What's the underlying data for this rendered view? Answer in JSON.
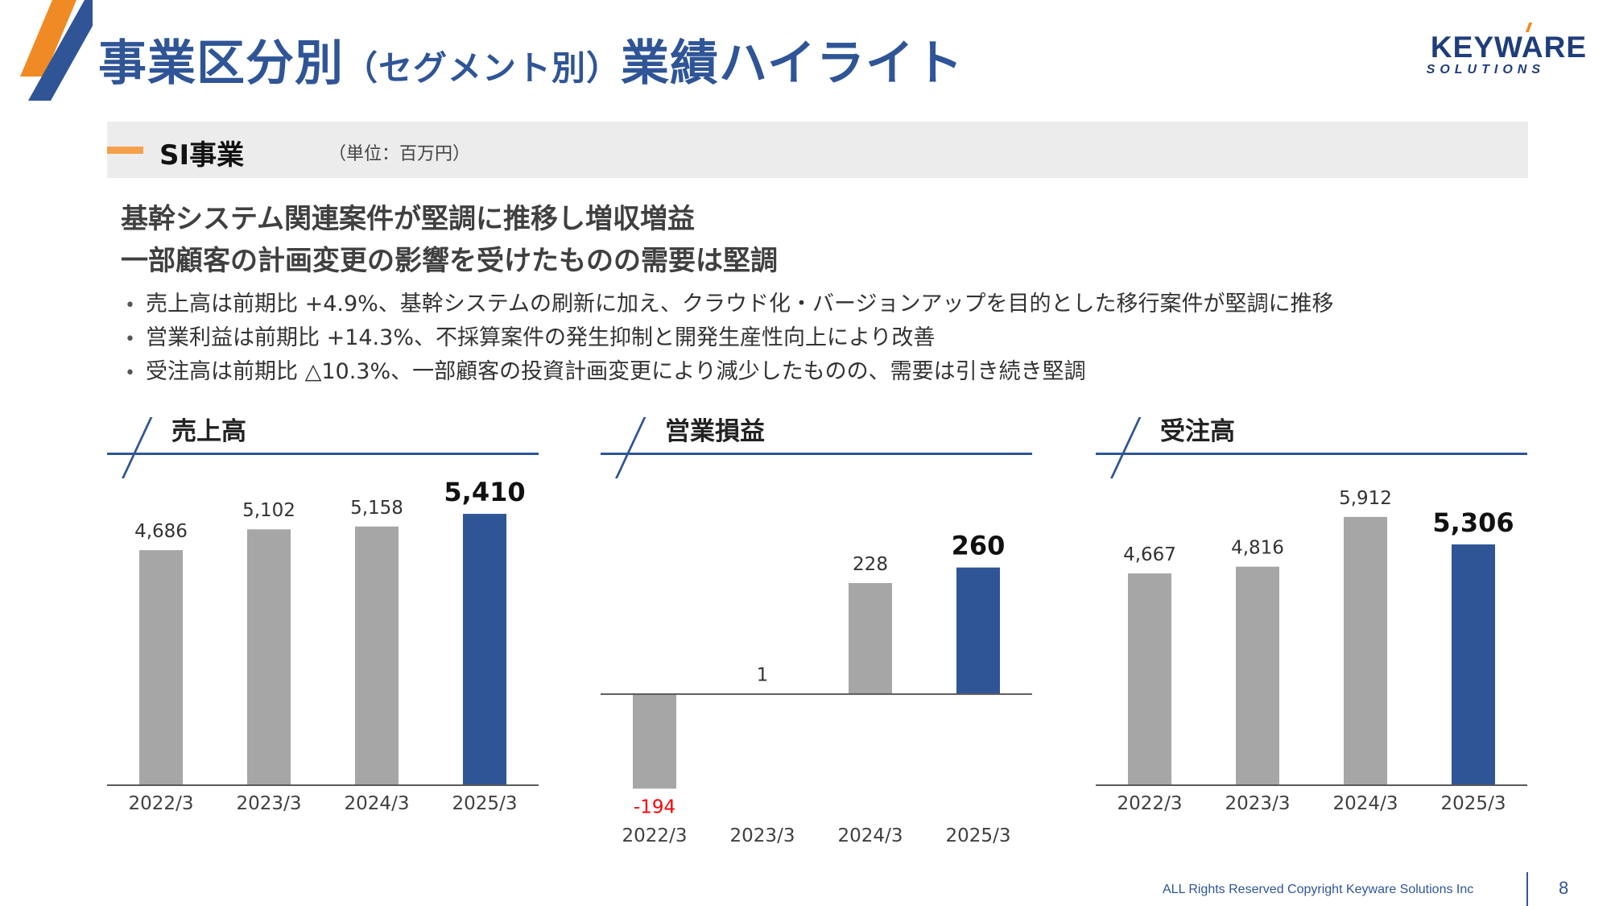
{
  "header": {
    "title_main": "事業区分別",
    "title_paren": "（セグメント別）",
    "title_tail": "業績ハイライト",
    "brand_main": "KEYWARE",
    "brand_sub": "SOLUTIONS"
  },
  "section": {
    "name": "SI事業",
    "unit": "（単位：百万円）"
  },
  "headlines": [
    "基幹システム関連案件が堅調に推移し増収増益",
    "一部顧客の計画変更の影響を受けたものの需要は堅調"
  ],
  "bullets": [
    "売上高は前期比 +4.9%、基幹システムの刷新に加え、クラウド化・バージョンアップを目的とした移行案件が堅調に推移",
    "営業利益は前期比 +14.3%、不採算案件の発生抑制と開発生産性向上により改善",
    "受注高は前期比 △10.3%、一部顧客の投資計画変更により減少したものの、需要は引き続き堅調"
  ],
  "colors": {
    "accent": "#2f5597",
    "bar_gray": "#a6a6a6",
    "bar_highlight": "#2f5597",
    "negative": "#ff0000",
    "orange": "#f5a04a"
  },
  "chart_data": [
    {
      "type": "bar",
      "title": "売上高",
      "categories": [
        "2022/3",
        "2023/3",
        "2024/3",
        "2025/3"
      ],
      "values": [
        4686,
        5102,
        5158,
        5410
      ],
      "labels": [
        "4,686",
        "5,102",
        "5,158",
        "5,410"
      ],
      "highlight_index": 3,
      "ylim": [
        0,
        5700
      ]
    },
    {
      "type": "bar",
      "title": "営業損益",
      "categories": [
        "2022/3",
        "2023/3",
        "2024/3",
        "2025/3"
      ],
      "values": [
        -194,
        1,
        228,
        260
      ],
      "labels": [
        "-194",
        "1",
        "228",
        "260"
      ],
      "highlight_index": 3,
      "ylim": [
        -220,
        400
      ]
    },
    {
      "type": "bar",
      "title": "受注高",
      "categories": [
        "2022/3",
        "2023/3",
        "2024/3",
        "2025/3"
      ],
      "values": [
        4667,
        4816,
        5912,
        5306
      ],
      "labels": [
        "4,667",
        "4,816",
        "5,912",
        "5,306"
      ],
      "highlight_index": 3,
      "ylim": [
        0,
        6300
      ]
    }
  ],
  "footer": {
    "copyright": "ALL Rights Reserved Copyright Keyware Solutions Inc",
    "page": "8"
  }
}
